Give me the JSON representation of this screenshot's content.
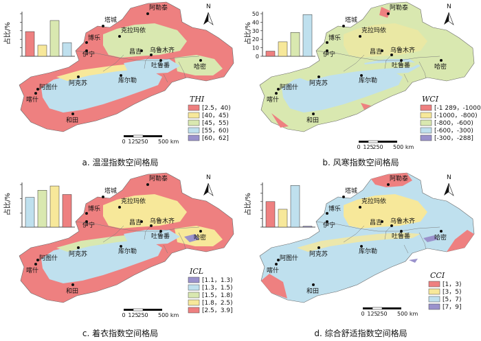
{
  "colors": {
    "red": "#ee8080",
    "yellow": "#f7e89a",
    "green": "#d9e8b0",
    "blue": "#bfe0ee",
    "purple": "#9a92cc",
    "city_dot": "#111111"
  },
  "north_label": "N",
  "scale": {
    "labels": [
      "0",
      "125",
      "250",
      "500 km"
    ]
  },
  "y_axis_label": "占比/%",
  "cities": [
    "阿勒泰",
    "塔城",
    "克拉玛依",
    "博乐",
    "伊宁",
    "昌吉",
    "乌鲁木齐",
    "吐鲁番",
    "哈密",
    "阿克苏",
    "库尔勒",
    "阿图什",
    "喀什",
    "和田"
  ],
  "panels": [
    {
      "id": "a",
      "caption": "a.  温湿指数空间格局",
      "legend": {
        "title": "THI",
        "items": [
          {
            "label": "[2.5，40)",
            "color": "#ee8080"
          },
          {
            "label": "[40，45)",
            "color": "#f7e89a"
          },
          {
            "label": "[45，55)",
            "color": "#d9e8b0"
          },
          {
            "label": "[55，60)",
            "color": "#bfe0ee"
          },
          {
            "label": "[60，62]",
            "color": "#9a92cc"
          }
        ]
      },
      "chart_data": {
        "type": "bar",
        "ylabel": "占比/%",
        "ylim": [
          0,
          50
        ],
        "yticks": [
          0,
          10,
          20,
          30,
          40,
          50
        ],
        "tick_labels_visible": false,
        "values": [
          29,
          13,
          42,
          16
        ],
        "colors": [
          "#ee8080",
          "#f7e89a",
          "#d9e8b0",
          "#bfe0ee"
        ]
      }
    },
    {
      "id": "b",
      "caption": "b.  风寒指数空间格局",
      "legend": {
        "title": "WCI",
        "items": [
          {
            "label": "[-1 289，-1000)",
            "color": "#ee8080"
          },
          {
            "label": "[-1000，-800)",
            "color": "#f7e89a"
          },
          {
            "label": "[-800，-600)",
            "color": "#d9e8b0"
          },
          {
            "label": "[-600，-300)",
            "color": "#bfe0ee"
          },
          {
            "label": "[-300，-288]",
            "color": "#9a92cc"
          }
        ]
      },
      "chart_data": {
        "type": "bar",
        "ylabel": "占比/%",
        "ylim": [
          0,
          50
        ],
        "yticks": [
          0,
          10,
          20,
          30,
          40,
          50
        ],
        "tick_labels_visible": true,
        "values": [
          6,
          17,
          28,
          49
        ],
        "colors": [
          "#ee8080",
          "#f7e89a",
          "#d9e8b0",
          "#bfe0ee"
        ]
      }
    },
    {
      "id": "c",
      "caption": "c.  着衣指数空间格局",
      "legend": {
        "title": "ICL",
        "items": [
          {
            "label": "[1.1，1.3)",
            "color": "#9a92cc"
          },
          {
            "label": "[1.3，1.5)",
            "color": "#bfe0ee"
          },
          {
            "label": "[1.5，1.8)",
            "color": "#d9e8b0"
          },
          {
            "label": "[1.8，2.5)",
            "color": "#f7e89a"
          },
          {
            "label": "[2.5，3.9]",
            "color": "#ee8080"
          }
        ]
      },
      "chart_data": {
        "type": "bar",
        "ylabel": "占比/%",
        "ylim": [
          0,
          30
        ],
        "yticks": [
          0,
          10,
          20,
          30
        ],
        "tick_labels_visible": false,
        "values": [
          21,
          26,
          29,
          23
        ],
        "colors": [
          "#bfe0ee",
          "#d9e8b0",
          "#f7e89a",
          "#ee8080"
        ]
      }
    },
    {
      "id": "d",
      "caption": "d.  综合舒适指数空间格局",
      "legend": {
        "title": "CCI",
        "items": [
          {
            "label": "[1，3)",
            "color": "#ee8080"
          },
          {
            "label": "[3，5)",
            "color": "#f7e89a"
          },
          {
            "label": "[5，7)",
            "color": "#bfe0ee"
          },
          {
            "label": "[7，9]",
            "color": "#9a92cc"
          }
        ]
      },
      "chart_data": {
        "type": "bar",
        "ylabel": "占比/%",
        "ylim": [
          0,
          50
        ],
        "yticks": [
          0,
          10,
          20,
          30,
          40,
          50
        ],
        "tick_labels_visible": false,
        "values": [
          30,
          21,
          49,
          1
        ],
        "colors": [
          "#ee8080",
          "#f7e89a",
          "#bfe0ee",
          "#9a92cc"
        ]
      }
    }
  ]
}
